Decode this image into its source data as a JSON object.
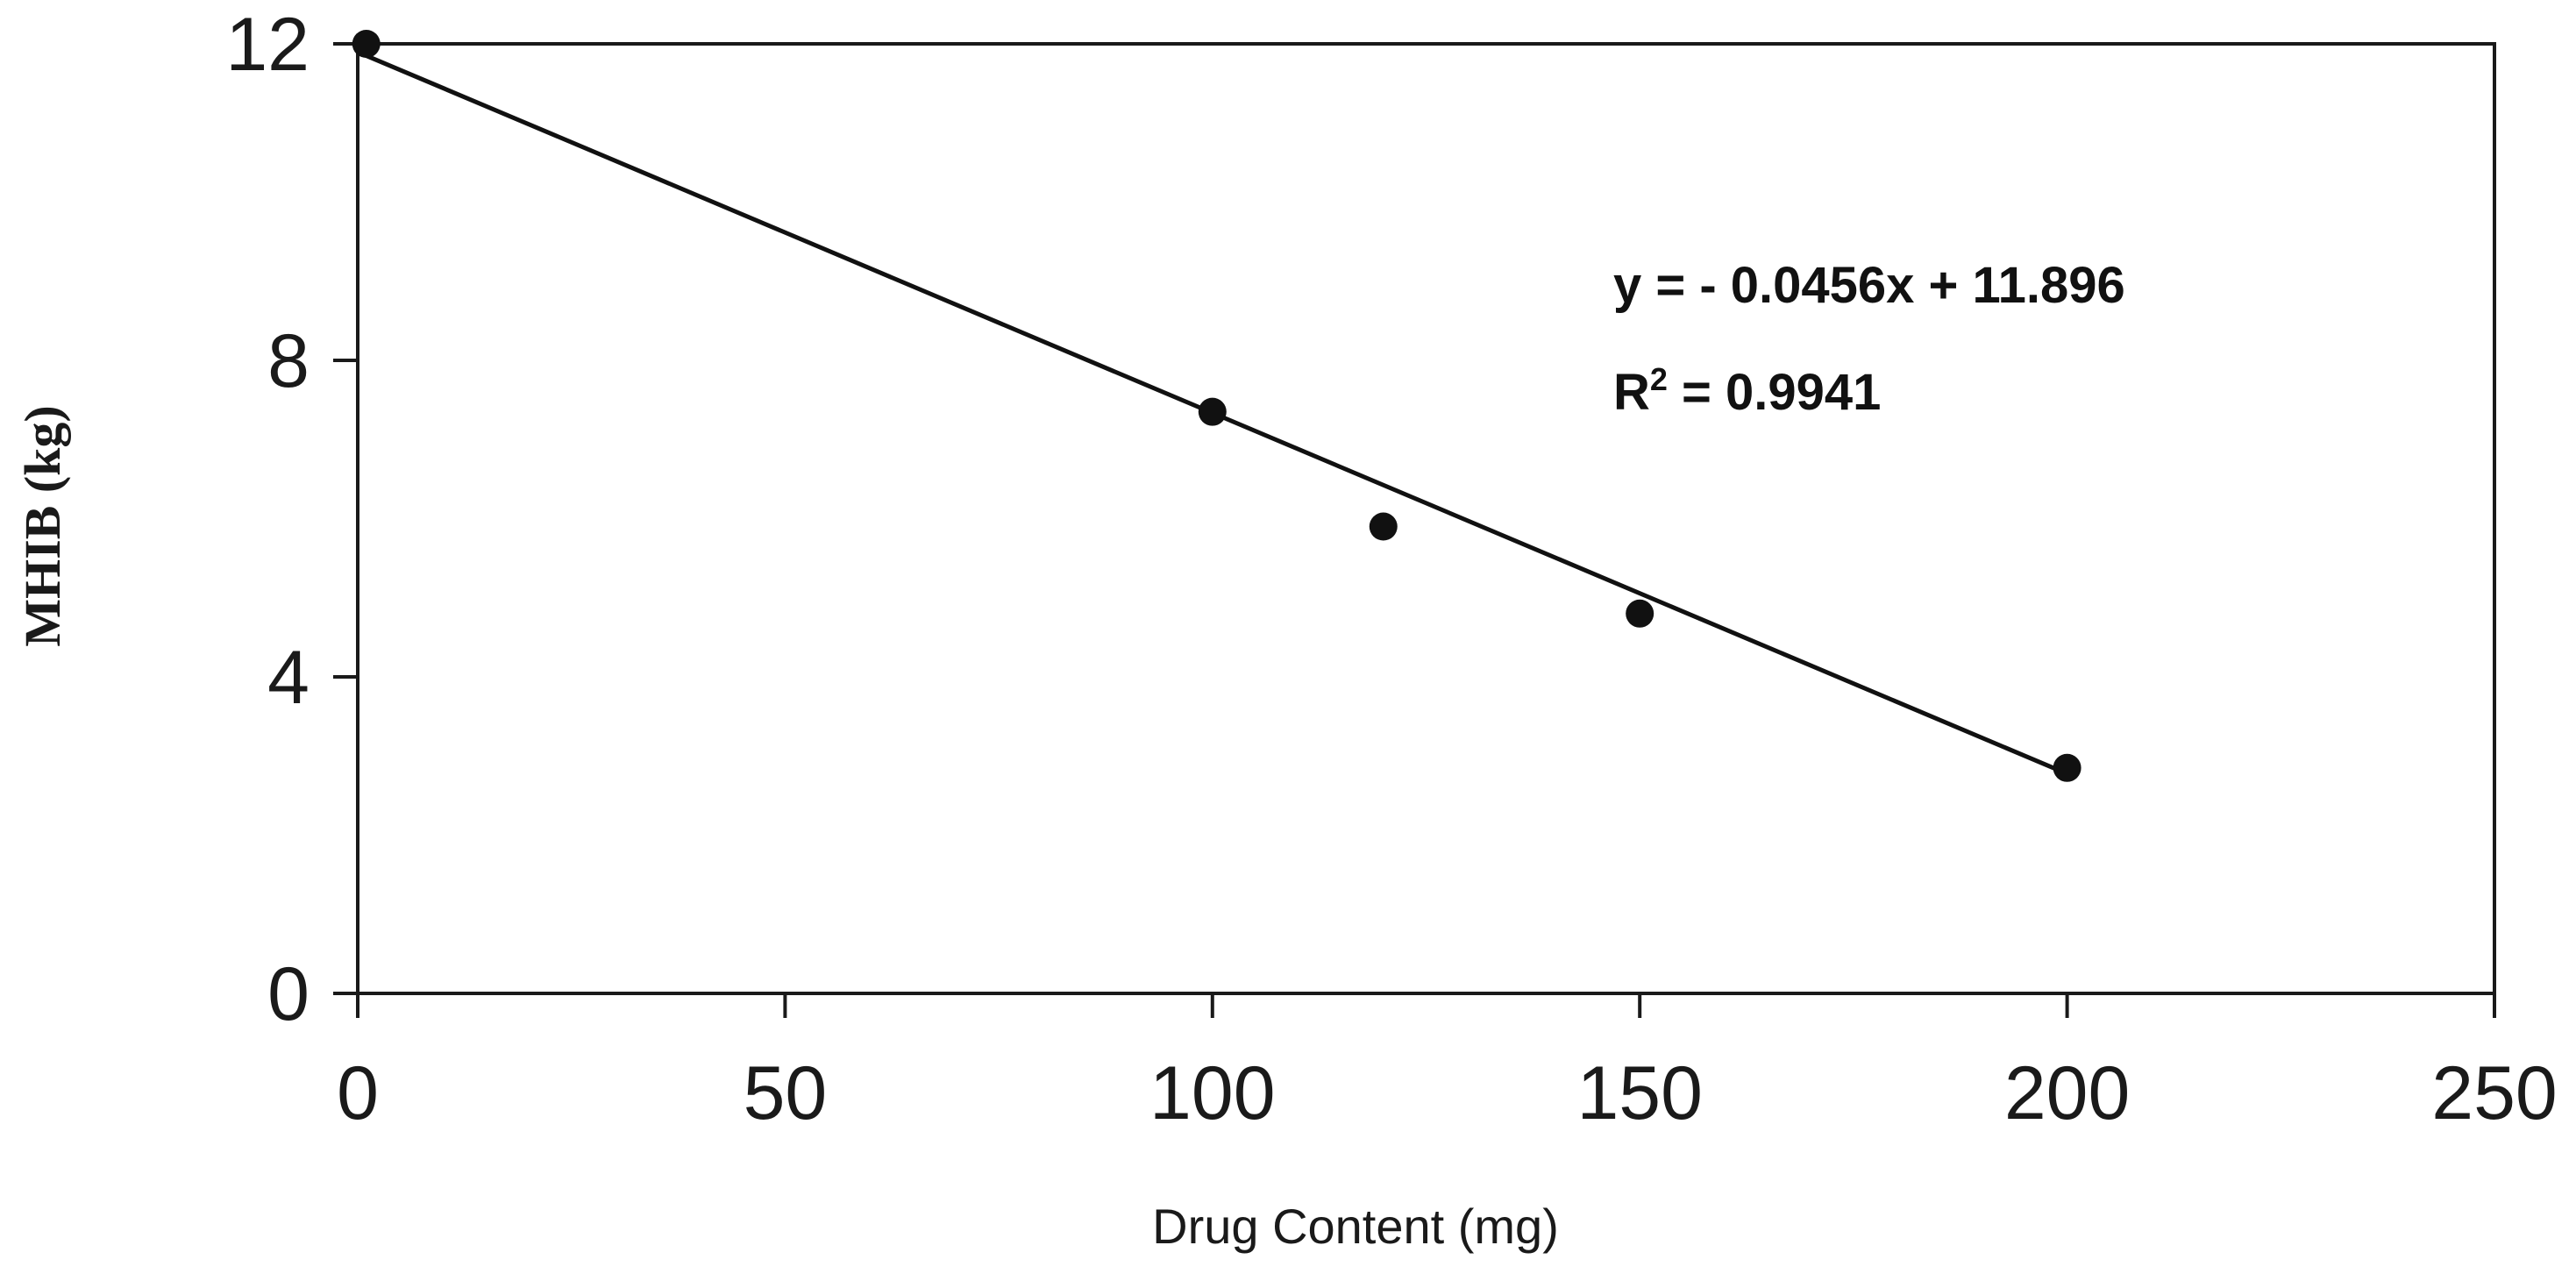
{
  "chart_data": {
    "type": "scatter",
    "title": "",
    "xlabel": "Drug Content (mg)",
    "ylabel": "MHIB (kg)",
    "xlim": [
      0,
      250
    ],
    "ylim": [
      0,
      12
    ],
    "x_ticks": [
      "0",
      "50",
      "100",
      "150",
      "200",
      "250"
    ],
    "y_ticks": [
      "0",
      "4",
      "8",
      "12"
    ],
    "grid": false,
    "points": [
      {
        "x": 1,
        "y": 12.0
      },
      {
        "x": 100,
        "y": 7.35
      },
      {
        "x": 120,
        "y": 5.9
      },
      {
        "x": 150,
        "y": 4.8
      },
      {
        "x": 200,
        "y": 2.85
      }
    ],
    "trendline": {
      "slope": -0.0456,
      "intercept": 11.896,
      "x_range": [
        0,
        200
      ]
    },
    "annotations": {
      "equation": "y = - 0.0456x + 11.896",
      "r2_prefix": "R",
      "r2_superscript": "2",
      "r2_suffix": " = 0.9941"
    },
    "colors": {
      "marker": "#111111",
      "line": "#111111",
      "axis": "#1a1a1a"
    }
  }
}
